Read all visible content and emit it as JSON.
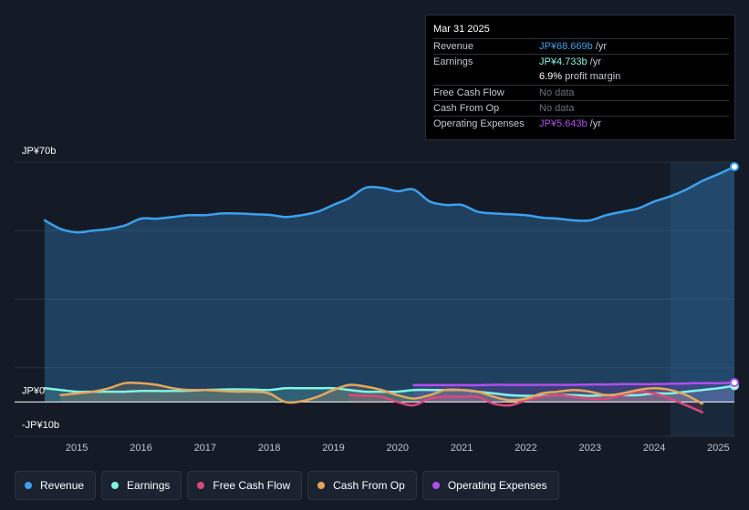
{
  "tooltip": {
    "date": "Mar 31 2025",
    "rows": [
      {
        "label": "Revenue",
        "value": "JP¥68.669b",
        "unit": " /yr",
        "color": "#3ba1ef"
      },
      {
        "label": "Earnings",
        "value": "JP¥4.733b",
        "unit": " /yr",
        "color": "#7ff5e3"
      },
      {
        "label": "",
        "value": "6.9%",
        "unit": " profit margin",
        "color": "#ffffff"
      },
      {
        "label": "Free Cash Flow",
        "value": "No data",
        "unit": "",
        "color": "#6b717c"
      },
      {
        "label": "Cash From Op",
        "value": "No data",
        "unit": "",
        "color": "#6b717c"
      },
      {
        "label": "Operating Expenses",
        "value": "JP¥5.643b",
        "unit": " /yr",
        "color": "#b04ef0"
      }
    ]
  },
  "legend": [
    {
      "label": "Revenue",
      "color": "#3ba1ef"
    },
    {
      "label": "Earnings",
      "color": "#7ff5e3"
    },
    {
      "label": "Free Cash Flow",
      "color": "#d8497b"
    },
    {
      "label": "Cash From Op",
      "color": "#e3a75c"
    },
    {
      "label": "Operating Expenses",
      "color": "#b04ef0"
    }
  ],
  "chart_data": {
    "type": "line",
    "title": "",
    "xlabel": "",
    "ylabel": "",
    "ylim": [
      -10,
      70
    ],
    "y_tick_labels": [
      {
        "value": 70,
        "label": "JP¥70b"
      },
      {
        "value": 0,
        "label": "JP¥0"
      },
      {
        "value": -10,
        "label": "-JP¥10b"
      }
    ],
    "xlim": [
      2014.5,
      2025.25
    ],
    "x_ticks": [
      "2015",
      "2016",
      "2017",
      "2018",
      "2019",
      "2020",
      "2021",
      "2022",
      "2023",
      "2024",
      "2025"
    ],
    "series": [
      {
        "name": "Revenue",
        "color": "#3ba1ef",
        "x": [
          2014.5,
          2014.75,
          2015.0,
          2015.25,
          2015.5,
          2015.75,
          2016.0,
          2016.25,
          2016.5,
          2016.75,
          2017.0,
          2017.25,
          2017.5,
          2017.75,
          2018.0,
          2018.25,
          2018.5,
          2018.75,
          2019.0,
          2019.25,
          2019.5,
          2019.75,
          2020.0,
          2020.25,
          2020.5,
          2020.75,
          2021.0,
          2021.25,
          2021.5,
          2021.75,
          2022.0,
          2022.25,
          2022.5,
          2022.75,
          2023.0,
          2023.25,
          2023.5,
          2023.75,
          2024.0,
          2024.25,
          2024.5,
          2024.75,
          2025.0,
          2025.25
        ],
        "values": [
          53,
          50.5,
          49.5,
          50,
          50.5,
          51.5,
          53.5,
          53.5,
          54,
          54.5,
          54.5,
          55,
          55,
          54.8,
          54.6,
          54,
          54.5,
          55.5,
          57.5,
          59.5,
          62.5,
          62.5,
          61.5,
          62,
          58.5,
          57.5,
          57.5,
          55.5,
          55,
          54.8,
          54.5,
          53.8,
          53.5,
          53,
          53,
          54.5,
          55.5,
          56.5,
          58.5,
          60,
          62,
          64.5,
          66.5,
          68.669
        ]
      },
      {
        "name": "Earnings",
        "color": "#7ff5e3",
        "x": [
          2014.5,
          2014.75,
          2015.0,
          2015.25,
          2015.5,
          2015.75,
          2016.0,
          2016.25,
          2016.5,
          2016.75,
          2017.0,
          2017.25,
          2017.5,
          2017.75,
          2018.0,
          2018.25,
          2018.5,
          2018.75,
          2019.0,
          2019.25,
          2019.5,
          2019.75,
          2020.0,
          2020.25,
          2020.5,
          2020.75,
          2021.0,
          2021.25,
          2021.5,
          2021.75,
          2022.0,
          2022.25,
          2022.5,
          2022.75,
          2023.0,
          2023.25,
          2023.5,
          2023.75,
          2024.0,
          2024.25,
          2024.5,
          2024.75,
          2025.0,
          2025.25
        ],
        "values": [
          4,
          3.5,
          3,
          3,
          3,
          3,
          3.2,
          3.2,
          3.2,
          3.3,
          3.5,
          3.6,
          3.7,
          3.6,
          3.5,
          4,
          4,
          4,
          4,
          3.5,
          3,
          3,
          3,
          3.5,
          3.5,
          3.5,
          3.5,
          3,
          2.5,
          2,
          1.8,
          1.8,
          2,
          2,
          1.8,
          2,
          2,
          2,
          2.5,
          2.5,
          3,
          3.5,
          4,
          4.733
        ]
      },
      {
        "name": "Free Cash Flow",
        "color": "#d8497b",
        "x": [
          2019.25,
          2019.5,
          2019.75,
          2020.0,
          2020.25,
          2020.5,
          2020.75,
          2021.0,
          2021.25,
          2021.5,
          2021.75,
          2022.0,
          2022.25,
          2022.5,
          2022.75,
          2023.0,
          2023.25,
          2023.5,
          2023.75,
          2024.0,
          2024.25,
          2024.5,
          2024.75
        ],
        "values": [
          2,
          1.8,
          1.5,
          0,
          -1,
          1,
          1.5,
          1.5,
          1.5,
          -0.5,
          -1,
          0.5,
          1.5,
          2,
          1.5,
          1,
          1,
          2,
          3,
          2.5,
          1,
          -1,
          -3
        ]
      },
      {
        "name": "Cash From Op",
        "color": "#e3a75c",
        "x": [
          2014.75,
          2015.0,
          2015.25,
          2015.5,
          2015.75,
          2016.0,
          2016.25,
          2016.5,
          2016.75,
          2017.0,
          2017.25,
          2017.5,
          2017.75,
          2018.0,
          2018.25,
          2018.5,
          2018.75,
          2019.0,
          2019.25,
          2019.5,
          2019.75,
          2020.0,
          2020.25,
          2020.5,
          2020.75,
          2021.0,
          2021.25,
          2021.5,
          2021.75,
          2022.0,
          2022.25,
          2022.5,
          2022.75,
          2023.0,
          2023.25,
          2023.5,
          2023.75,
          2024.0,
          2024.25,
          2024.5,
          2024.75
        ],
        "values": [
          2,
          2.5,
          3,
          4,
          5.5,
          5.5,
          5,
          4,
          3.5,
          3.5,
          3.2,
          3,
          3,
          2.5,
          0,
          0.2,
          1.5,
          3.5,
          5,
          4.5,
          3.5,
          2,
          1,
          2,
          3.5,
          3.5,
          3,
          1.5,
          0.5,
          1,
          2.5,
          3,
          3.5,
          3,
          2,
          2.5,
          3.5,
          4,
          3.5,
          2,
          -0.5
        ]
      },
      {
        "name": "Operating Expenses",
        "color": "#b04ef0",
        "x": [
          2020.25,
          2020.5,
          2020.75,
          2021.0,
          2021.25,
          2021.5,
          2021.75,
          2022.0,
          2022.25,
          2022.5,
          2022.75,
          2023.0,
          2023.25,
          2023.5,
          2023.75,
          2024.0,
          2024.25,
          2024.5,
          2024.75,
          2025.0,
          2025.25
        ],
        "values": [
          4.9,
          4.9,
          4.9,
          4.9,
          4.9,
          5,
          5,
          5,
          5,
          5,
          5,
          5.1,
          5.1,
          5.2,
          5.2,
          5.2,
          5.3,
          5.4,
          5.5,
          5.5,
          5.643
        ]
      }
    ]
  }
}
